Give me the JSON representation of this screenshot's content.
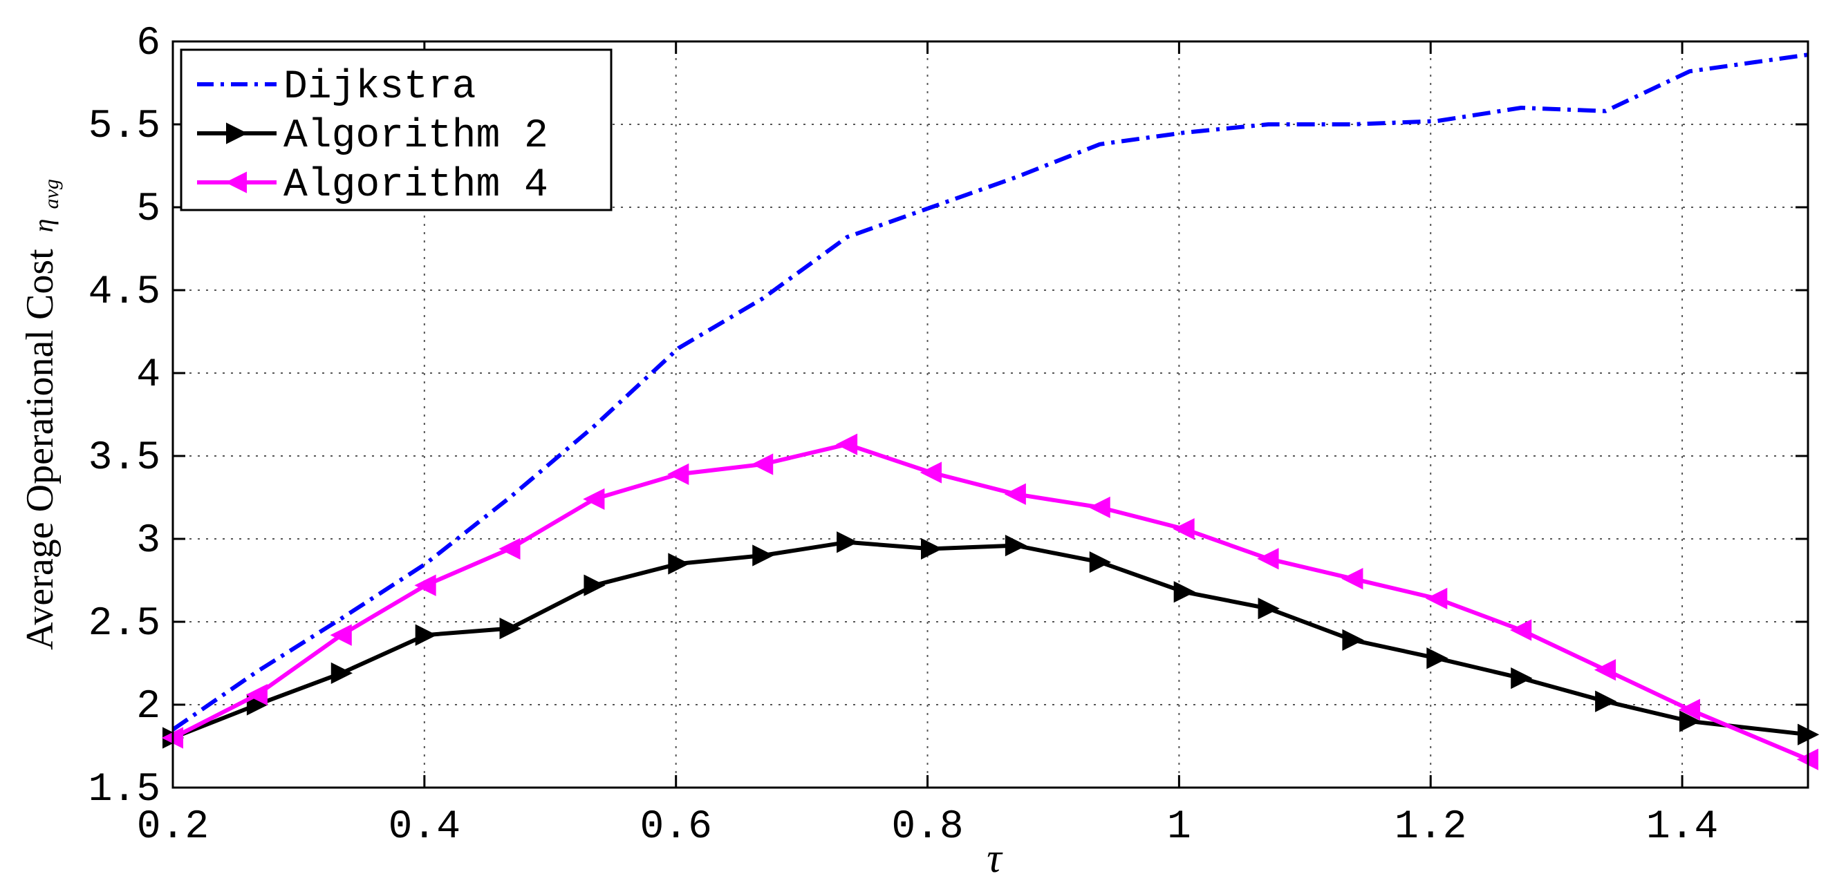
{
  "chart_data": {
    "type": "line",
    "title": "",
    "xlabel": "τ",
    "ylabel": "Average Operational Cost",
    "ylabel_symbol": "η",
    "ylabel_subscript": "avg",
    "xlim": [
      0.2,
      1.5
    ],
    "ylim": [
      1.5,
      6
    ],
    "grid": true,
    "legend_position": "top-left",
    "x_ticks": [
      0.2,
      0.4,
      0.6,
      0.8,
      1,
      1.2,
      1.4
    ],
    "x_tick_labels": [
      "0.2",
      "0.4",
      "0.6",
      "0.8",
      "1",
      "1.2",
      "1.4"
    ],
    "y_ticks": [
      1.5,
      2,
      2.5,
      3,
      3.5,
      4,
      4.5,
      5,
      5.5,
      6
    ],
    "y_tick_labels": [
      "1.5",
      "2",
      "2.5",
      "3",
      "3.5",
      "4",
      "4.5",
      "5",
      "5.5",
      "6"
    ],
    "series": [
      {
        "name": "Dijkstra",
        "color": "#0000ff",
        "line_style": "dashdot",
        "marker": "none",
        "x": [
          0.2,
          0.267,
          0.334,
          0.401,
          0.468,
          0.535,
          0.602,
          0.669,
          0.736,
          0.803,
          0.87,
          0.937,
          1.004,
          1.071,
          1.138,
          1.205,
          1.272,
          1.339,
          1.406,
          1.5
        ],
        "values": [
          1.85,
          2.2,
          2.52,
          2.85,
          3.25,
          3.68,
          4.15,
          4.45,
          4.82,
          5.0,
          5.18,
          5.38,
          5.45,
          5.5,
          5.5,
          5.52,
          5.6,
          5.58,
          5.82,
          5.92
        ]
      },
      {
        "name": "Algorithm 2",
        "color": "#000000",
        "line_style": "solid",
        "marker": "triangle-right",
        "x": [
          0.2,
          0.267,
          0.334,
          0.401,
          0.468,
          0.535,
          0.602,
          0.669,
          0.736,
          0.803,
          0.87,
          0.937,
          1.004,
          1.071,
          1.138,
          1.205,
          1.272,
          1.339,
          1.406,
          1.5
        ],
        "values": [
          1.8,
          2.0,
          2.19,
          2.42,
          2.46,
          2.72,
          2.85,
          2.9,
          2.98,
          2.94,
          2.96,
          2.86,
          2.68,
          2.58,
          2.39,
          2.28,
          2.16,
          2.02,
          1.9,
          1.82
        ]
      },
      {
        "name": "Algorithm 4",
        "color": "#ff00ff",
        "line_style": "solid",
        "marker": "triangle-left",
        "x": [
          0.2,
          0.267,
          0.334,
          0.401,
          0.468,
          0.535,
          0.602,
          0.669,
          0.736,
          0.803,
          0.87,
          0.937,
          1.004,
          1.071,
          1.138,
          1.205,
          1.272,
          1.339,
          1.406,
          1.5
        ],
        "values": [
          1.8,
          2.06,
          2.42,
          2.72,
          2.94,
          3.24,
          3.39,
          3.45,
          3.57,
          3.4,
          3.27,
          3.19,
          3.06,
          2.88,
          2.76,
          2.64,
          2.45,
          2.21,
          1.97,
          1.67
        ]
      }
    ]
  }
}
